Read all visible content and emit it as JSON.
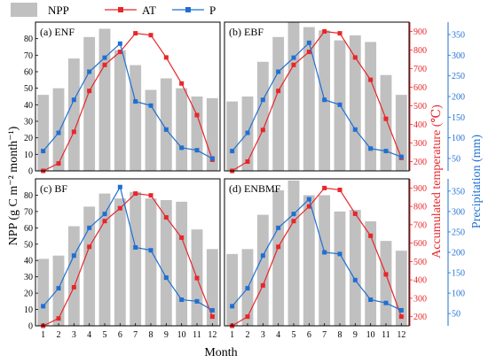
{
  "legend": {
    "npp_label": "NPP",
    "at_label": "AT",
    "p_label": "P"
  },
  "axes_text": {
    "ylabel_left": "NPP (g C m⁻² month⁻¹)",
    "ylabel_right_at": "Accumulated temperature (℃)",
    "ylabel_right_p": "Precipitation (mm)",
    "xlabel": "Month"
  },
  "colors": {
    "npp_bar": "#c0c0c0",
    "at_line": "#e8262a",
    "p_line": "#1f6fd2",
    "frame": "#000000"
  },
  "chart_data": [
    {
      "type": "bar",
      "panel": "(a) ENF",
      "categories": [
        "1",
        "2",
        "3",
        "4",
        "5",
        "6",
        "7",
        "8",
        "9",
        "10",
        "11",
        "12"
      ],
      "npp_ylim": [
        0,
        90
      ],
      "at_ylim": [
        150,
        950
      ],
      "p_ylim": [
        20,
        380
      ],
      "series": [
        {
          "name": "NPP",
          "values": [
            46,
            50,
            68,
            81,
            86,
            73,
            64,
            49,
            56,
            50,
            45,
            44
          ]
        },
        {
          "name": "AT",
          "values": [
            150,
            190,
            360,
            580,
            720,
            790,
            890,
            880,
            760,
            620,
            450,
            210
          ]
        },
        {
          "name": "P",
          "values": [
            68,
            112,
            192,
            260,
            294,
            328,
            188,
            178,
            120,
            76,
            70,
            50
          ]
        }
      ]
    },
    {
      "type": "bar",
      "panel": "(b) EBF",
      "categories": [
        "1",
        "2",
        "3",
        "4",
        "5",
        "6",
        "7",
        "8",
        "9",
        "10",
        "11",
        "12"
      ],
      "npp_ylim": [
        0,
        90
      ],
      "at_ylim": [
        150,
        950
      ],
      "p_ylim": [
        20,
        380
      ],
      "series": [
        {
          "name": "NPP",
          "values": [
            42,
            45,
            66,
            81,
            90,
            87,
            85,
            79,
            82,
            78,
            58,
            46
          ]
        },
        {
          "name": "AT",
          "values": [
            150,
            200,
            370,
            580,
            720,
            790,
            900,
            890,
            760,
            640,
            430,
            220
          ]
        },
        {
          "name": "P",
          "values": [
            68,
            112,
            192,
            260,
            294,
            330,
            192,
            180,
            120,
            74,
            68,
            54
          ]
        }
      ]
    },
    {
      "type": "bar",
      "panel": "(c) BF",
      "categories": [
        "1",
        "2",
        "3",
        "4",
        "5",
        "6",
        "7",
        "8",
        "9",
        "10",
        "11",
        "12"
      ],
      "npp_ylim": [
        0,
        90
      ],
      "at_ylim": [
        150,
        950
      ],
      "p_ylim": [
        20,
        380
      ],
      "series": [
        {
          "name": "NPP",
          "values": [
            41,
            43,
            61,
            73,
            81,
            78,
            82,
            78,
            77,
            76,
            59,
            47
          ]
        },
        {
          "name": "AT",
          "values": [
            150,
            190,
            360,
            580,
            720,
            790,
            870,
            860,
            740,
            630,
            410,
            200
          ]
        },
        {
          "name": "P",
          "values": [
            68,
            112,
            192,
            260,
            294,
            360,
            212,
            205,
            138,
            84,
            80,
            58
          ]
        }
      ]
    },
    {
      "type": "bar",
      "panel": "(d) ENBMF",
      "categories": [
        "1",
        "2",
        "3",
        "4",
        "5",
        "6",
        "7",
        "8",
        "9",
        "10",
        "11",
        "12"
      ],
      "npp_ylim": [
        0,
        90
      ],
      "at_ylim": [
        150,
        950
      ],
      "p_ylim": [
        20,
        380
      ],
      "series": [
        {
          "name": "NPP",
          "values": [
            44,
            47,
            68,
            83,
            89,
            80,
            80,
            70,
            71,
            64,
            52,
            46
          ]
        },
        {
          "name": "AT",
          "values": [
            150,
            200,
            370,
            580,
            720,
            800,
            900,
            890,
            760,
            640,
            430,
            200
          ]
        },
        {
          "name": "P",
          "values": [
            68,
            112,
            192,
            260,
            294,
            330,
            200,
            196,
            132,
            84,
            76,
            58
          ]
        }
      ]
    }
  ]
}
